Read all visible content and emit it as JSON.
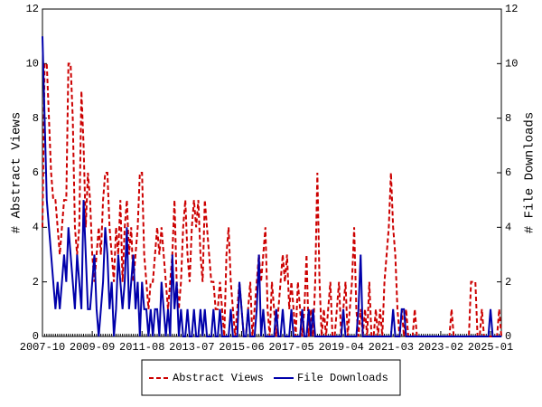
{
  "chart_data": {
    "type": "line",
    "y_label": "# Abstract Views",
    "y2_label": "# File Downloads",
    "categories": [
      "2007-10",
      null,
      null,
      null,
      null,
      null,
      null,
      null,
      null,
      null,
      null,
      null,
      null,
      null,
      null,
      null,
      null,
      null,
      null,
      null,
      null,
      null,
      null,
      "2009-09",
      null,
      null,
      null,
      null,
      null,
      null,
      null,
      null,
      null,
      null,
      null,
      null,
      null,
      null,
      null,
      null,
      null,
      null,
      null,
      null,
      null,
      null,
      "2011-08",
      null,
      null,
      null,
      null,
      null,
      null,
      null,
      null,
      null,
      null,
      null,
      null,
      null,
      null,
      null,
      null,
      null,
      null,
      null,
      null,
      null,
      null,
      "2013-07",
      null,
      null,
      null,
      null,
      null,
      null,
      null,
      null,
      null,
      null,
      null,
      null,
      null,
      null,
      null,
      null,
      null,
      null,
      null,
      null,
      null,
      null,
      "2015-06",
      null,
      null,
      null,
      null,
      null,
      null,
      null,
      null,
      null,
      null,
      null,
      null,
      null,
      null,
      null,
      null,
      null,
      null,
      null,
      null,
      null,
      null,
      "2017-05",
      null,
      null,
      null,
      null,
      null,
      null,
      null,
      null,
      null,
      null,
      null,
      null,
      null,
      null,
      null,
      null,
      null,
      null,
      null,
      null,
      null,
      null,
      "2019-04",
      null,
      null,
      null,
      null,
      null,
      null,
      null,
      null,
      null,
      null,
      null,
      null,
      null,
      null,
      null,
      null,
      null,
      null,
      null,
      null,
      null,
      null,
      "2021-03",
      null,
      null,
      null,
      null,
      null,
      null,
      null,
      null,
      null,
      null,
      null,
      null,
      null,
      null,
      null,
      null,
      null,
      null,
      null,
      null,
      null,
      null,
      "2023-02",
      null,
      null,
      null,
      null,
      null,
      null,
      null,
      null,
      null,
      null,
      null,
      null,
      null,
      null,
      null,
      null,
      null,
      null,
      null,
      null,
      null,
      null,
      "2025-01",
      null,
      null,
      null,
      null,
      null
    ],
    "series": [
      {
        "name": "Abstract Views",
        "color": "#cc0000",
        "dashed": true,
        "axis": "y",
        "values": [
          4,
          10,
          10,
          8,
          6,
          5,
          5,
          4,
          3,
          4,
          5,
          5,
          10,
          10,
          8,
          4,
          3,
          4,
          9,
          7,
          4,
          6,
          5,
          3,
          2,
          3,
          4,
          3,
          5,
          6,
          6,
          4,
          3,
          2,
          4,
          3,
          5,
          2,
          4,
          5,
          3,
          4,
          2,
          3,
          4,
          6,
          6,
          3,
          2,
          1,
          2,
          2,
          3,
          4,
          3,
          4,
          3,
          2,
          1,
          2,
          3,
          5,
          2,
          1,
          2,
          4,
          5,
          3,
          2,
          4,
          5,
          4,
          5,
          3,
          2,
          5,
          4,
          3,
          2,
          2,
          1,
          1,
          2,
          1,
          0,
          3,
          4,
          2,
          1,
          0,
          1,
          2,
          1,
          0,
          0,
          1,
          2,
          0,
          1,
          2,
          3,
          2,
          3,
          4,
          1,
          0,
          2,
          1,
          0,
          1,
          2,
          3,
          2,
          3,
          1,
          2,
          1,
          0,
          2,
          1,
          0,
          1,
          3,
          0,
          1,
          0,
          2,
          6,
          2,
          0,
          1,
          0,
          1,
          2,
          0,
          0,
          1,
          2,
          0,
          1,
          2,
          0,
          1,
          2,
          4,
          1,
          0,
          1,
          0,
          1,
          0,
          2,
          0,
          0,
          1,
          0,
          1,
          0,
          2,
          3,
          4,
          6,
          4,
          3,
          1,
          0,
          1,
          0,
          1,
          0,
          0,
          0,
          1,
          0,
          0,
          0,
          0,
          0,
          0,
          0,
          0,
          0,
          0,
          0,
          0,
          0,
          0,
          0,
          0,
          1,
          0,
          0,
          0,
          0,
          0,
          0,
          0,
          0,
          2,
          2,
          2,
          0,
          0,
          1,
          0,
          0,
          0,
          0,
          0,
          0,
          0,
          1,
          0
        ]
      },
      {
        "name": "File Downloads",
        "color": "#0000aa",
        "dashed": false,
        "axis": "y2",
        "values": [
          11,
          8,
          5,
          4,
          3,
          2,
          1,
          2,
          1,
          2,
          3,
          2,
          4,
          3,
          2,
          1,
          3,
          2,
          1,
          5,
          3,
          1,
          1,
          2,
          3,
          1,
          0,
          1,
          2,
          4,
          3,
          1,
          2,
          0,
          1,
          3,
          2,
          1,
          2,
          4,
          1,
          2,
          3,
          1,
          2,
          0,
          2,
          1,
          1,
          0,
          1,
          0,
          1,
          1,
          0,
          2,
          1,
          0,
          1,
          0,
          3,
          1,
          2,
          0,
          1,
          0,
          0,
          1,
          0,
          0,
          1,
          0,
          0,
          1,
          0,
          1,
          0,
          0,
          0,
          1,
          0,
          0,
          1,
          0,
          0,
          0,
          0,
          1,
          0,
          0,
          0,
          2,
          1,
          0,
          0,
          1,
          0,
          0,
          0,
          1,
          3,
          0,
          1,
          0,
          0,
          0,
          0,
          0,
          1,
          0,
          0,
          1,
          0,
          0,
          0,
          1,
          0,
          0,
          0,
          0,
          1,
          0,
          0,
          1,
          0,
          1,
          0,
          0,
          0,
          0,
          0,
          0,
          0,
          0,
          0,
          0,
          0,
          0,
          0,
          1,
          0,
          0,
          0,
          0,
          0,
          0,
          1,
          3,
          0,
          0,
          0,
          0,
          0,
          0,
          0,
          0,
          0,
          0,
          0,
          0,
          0,
          0,
          1,
          0,
          0,
          0,
          1,
          1,
          0,
          0,
          0,
          0,
          0,
          0,
          0,
          0,
          0,
          0,
          0,
          0,
          0,
          0,
          0,
          0,
          0,
          0,
          0,
          0,
          0,
          0,
          0,
          0,
          0,
          0,
          0,
          0,
          0,
          0,
          0,
          0,
          0,
          0,
          0,
          0,
          0,
          0,
          0,
          1,
          0,
          0,
          0,
          0,
          0
        ]
      }
    ],
    "ylim": [
      0,
      12
    ],
    "yticks": [
      0,
      2,
      4,
      6,
      8,
      10,
      12
    ],
    "y2lim": [
      0,
      12
    ],
    "y2ticks": [
      0,
      2,
      4,
      6,
      8,
      10,
      12
    ],
    "legend": "bottom"
  }
}
